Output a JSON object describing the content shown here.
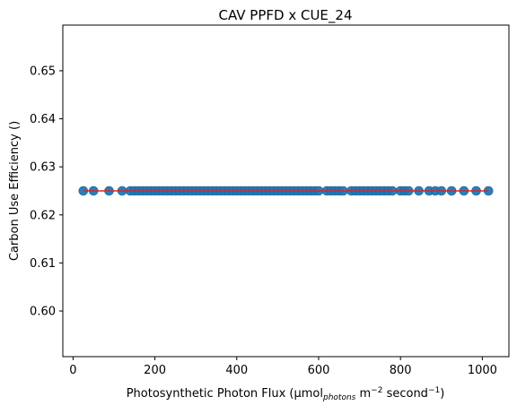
{
  "chart_data": {
    "type": "scatter",
    "title": "CAV PPFD x CUE_24",
    "xlabel": {
      "prefix": "Photosynthetic Photon Flux (µmol",
      "sub": "photons",
      "mid1": " m",
      "sup1": "−2",
      "mid2": " second",
      "sup2": "−1",
      "suffix": ")"
    },
    "ylabel": "Carbon Use Efficiency ()",
    "xlim": [
      -25,
      1065
    ],
    "ylim": [
      0.5905,
      0.6595
    ],
    "x_ticks": [
      {
        "value": 0,
        "label": "0"
      },
      {
        "value": 200,
        "label": "200"
      },
      {
        "value": 400,
        "label": "400"
      },
      {
        "value": 600,
        "label": "600"
      },
      {
        "value": 800,
        "label": "800"
      },
      {
        "value": 1000,
        "label": "1000"
      }
    ],
    "y_ticks": [
      {
        "value": 0.6,
        "label": "0.60"
      },
      {
        "value": 0.61,
        "label": "0.61"
      },
      {
        "value": 0.62,
        "label": "0.62"
      },
      {
        "value": 0.63,
        "label": "0.63"
      },
      {
        "value": 0.64,
        "label": "0.64"
      },
      {
        "value": 0.65,
        "label": "0.65"
      }
    ],
    "grid": false,
    "series": [
      {
        "kind": "points",
        "color": "#1f77b4",
        "x": [
          25,
          50,
          88,
          120,
          140,
          150,
          160,
          170,
          180,
          190,
          200,
          210,
          220,
          230,
          240,
          250,
          260,
          270,
          280,
          290,
          300,
          310,
          320,
          330,
          340,
          350,
          360,
          370,
          380,
          390,
          400,
          410,
          420,
          430,
          440,
          450,
          460,
          470,
          480,
          490,
          500,
          510,
          520,
          530,
          540,
          550,
          560,
          570,
          580,
          590,
          600,
          620,
          630,
          640,
          650,
          660,
          680,
          690,
          700,
          710,
          720,
          730,
          740,
          750,
          760,
          770,
          780,
          800,
          810,
          820,
          845,
          870,
          885,
          900,
          925,
          955,
          985,
          1015
        ],
        "y": [
          0.625,
          0.625,
          0.625,
          0.625,
          0.625,
          0.625,
          0.625,
          0.625,
          0.625,
          0.625,
          0.625,
          0.625,
          0.625,
          0.625,
          0.625,
          0.625,
          0.625,
          0.625,
          0.625,
          0.625,
          0.625,
          0.625,
          0.625,
          0.625,
          0.625,
          0.625,
          0.625,
          0.625,
          0.625,
          0.625,
          0.625,
          0.625,
          0.625,
          0.625,
          0.625,
          0.625,
          0.625,
          0.625,
          0.625,
          0.625,
          0.625,
          0.625,
          0.625,
          0.625,
          0.625,
          0.625,
          0.625,
          0.625,
          0.625,
          0.625,
          0.625,
          0.625,
          0.625,
          0.625,
          0.625,
          0.625,
          0.625,
          0.625,
          0.625,
          0.625,
          0.625,
          0.625,
          0.625,
          0.625,
          0.625,
          0.625,
          0.625,
          0.625,
          0.625,
          0.625,
          0.625,
          0.625,
          0.625,
          0.625,
          0.625,
          0.625,
          0.625,
          0.625
        ]
      },
      {
        "kind": "line",
        "color": "#d62728",
        "x": [
          25,
          1015
        ],
        "y": [
          0.625,
          0.625
        ]
      }
    ]
  }
}
